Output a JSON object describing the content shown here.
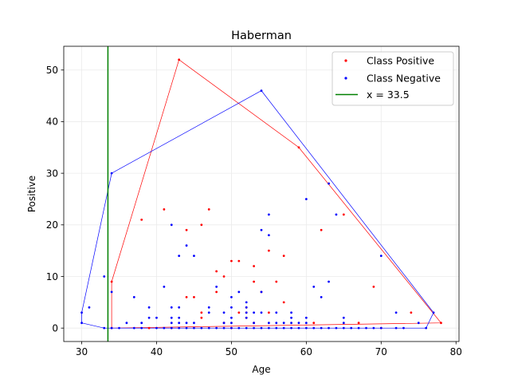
{
  "chart_data": {
    "type": "scatter",
    "title": "Haberman",
    "xlabel": "Age",
    "ylabel": "Positive",
    "xlim": [
      27.6,
      80.4
    ],
    "ylim": [
      -2.6,
      54.6
    ],
    "xticks": [
      30,
      40,
      50,
      60,
      70,
      80
    ],
    "yticks": [
      0,
      10,
      20,
      30,
      40,
      50
    ],
    "grid": true,
    "legend_position": "top-right",
    "vline": {
      "x": 33.5,
      "label": "x = 33.5",
      "color": "#008000"
    },
    "series": [
      {
        "name": "Class Positive",
        "color": "#ff0000",
        "points": [
          [
            34,
            9
          ],
          [
            34,
            0
          ],
          [
            38,
            21
          ],
          [
            39,
            0
          ],
          [
            41,
            23
          ],
          [
            42,
            0
          ],
          [
            43,
            52
          ],
          [
            44,
            6
          ],
          [
            44,
            19
          ],
          [
            45,
            6
          ],
          [
            46,
            20
          ],
          [
            46,
            3
          ],
          [
            46,
            2
          ],
          [
            47,
            23
          ],
          [
            48,
            11
          ],
          [
            48,
            7
          ],
          [
            49,
            10
          ],
          [
            49,
            1
          ],
          [
            50,
            13
          ],
          [
            50,
            0
          ],
          [
            51,
            13
          ],
          [
            51,
            3
          ],
          [
            52,
            3
          ],
          [
            52,
            2
          ],
          [
            52,
            4
          ],
          [
            53,
            12
          ],
          [
            53,
            9
          ],
          [
            53,
            1
          ],
          [
            54,
            7
          ],
          [
            55,
            15
          ],
          [
            55,
            3
          ],
          [
            56,
            9
          ],
          [
            57,
            14
          ],
          [
            57,
            5
          ],
          [
            59,
            35
          ],
          [
            61,
            1
          ],
          [
            62,
            19
          ],
          [
            63,
            28
          ],
          [
            65,
            22
          ],
          [
            67,
            1
          ],
          [
            69,
            8
          ],
          [
            70,
            0
          ],
          [
            74,
            3
          ],
          [
            78,
            1
          ]
        ],
        "hull": [
          [
            34,
            0
          ],
          [
            34,
            9
          ],
          [
            43,
            52
          ],
          [
            59,
            35
          ],
          [
            78,
            1
          ],
          [
            34,
            0
          ]
        ]
      },
      {
        "name": "Class Negative",
        "color": "#0000ff",
        "points": [
          [
            30,
            1
          ],
          [
            30,
            3
          ],
          [
            31,
            4
          ],
          [
            33,
            10
          ],
          [
            33,
            0
          ],
          [
            34,
            30
          ],
          [
            34,
            7
          ],
          [
            34,
            0
          ],
          [
            35,
            0
          ],
          [
            36,
            1
          ],
          [
            37,
            6
          ],
          [
            37,
            0
          ],
          [
            38,
            1
          ],
          [
            38,
            0
          ],
          [
            39,
            2
          ],
          [
            39,
            4
          ],
          [
            40,
            2
          ],
          [
            40,
            0
          ],
          [
            41,
            0
          ],
          [
            41,
            8
          ],
          [
            42,
            20
          ],
          [
            42,
            4
          ],
          [
            42,
            2
          ],
          [
            42,
            1
          ],
          [
            42,
            0
          ],
          [
            43,
            14
          ],
          [
            43,
            4
          ],
          [
            43,
            2
          ],
          [
            43,
            1
          ],
          [
            43,
            0
          ],
          [
            44,
            16
          ],
          [
            44,
            1
          ],
          [
            44,
            0
          ],
          [
            45,
            14
          ],
          [
            45,
            1
          ],
          [
            45,
            0
          ],
          [
            46,
            0
          ],
          [
            47,
            4
          ],
          [
            47,
            3
          ],
          [
            47,
            0
          ],
          [
            48,
            8
          ],
          [
            48,
            0
          ],
          [
            49,
            3
          ],
          [
            49,
            1
          ],
          [
            49,
            0
          ],
          [
            50,
            6
          ],
          [
            50,
            4
          ],
          [
            50,
            2
          ],
          [
            50,
            1
          ],
          [
            50,
            0
          ],
          [
            51,
            7
          ],
          [
            51,
            0
          ],
          [
            52,
            5
          ],
          [
            52,
            4
          ],
          [
            52,
            3
          ],
          [
            52,
            2
          ],
          [
            52,
            0
          ],
          [
            53,
            3
          ],
          [
            53,
            1
          ],
          [
            53,
            0
          ],
          [
            54,
            46
          ],
          [
            54,
            19
          ],
          [
            54,
            7
          ],
          [
            54,
            3
          ],
          [
            54,
            0
          ],
          [
            55,
            22
          ],
          [
            55,
            18
          ],
          [
            55,
            1
          ],
          [
            55,
            0
          ],
          [
            56,
            3
          ],
          [
            56,
            1
          ],
          [
            56,
            0
          ],
          [
            57,
            1
          ],
          [
            57,
            0
          ],
          [
            58,
            3
          ],
          [
            58,
            2
          ],
          [
            58,
            1
          ],
          [
            58,
            0
          ],
          [
            59,
            1
          ],
          [
            59,
            0
          ],
          [
            60,
            25
          ],
          [
            60,
            2
          ],
          [
            60,
            1
          ],
          [
            60,
            0
          ],
          [
            61,
            8
          ],
          [
            61,
            0
          ],
          [
            62,
            6
          ],
          [
            62,
            0
          ],
          [
            63,
            9
          ],
          [
            63,
            28
          ],
          [
            63,
            0
          ],
          [
            64,
            22
          ],
          [
            64,
            0
          ],
          [
            65,
            2
          ],
          [
            65,
            1
          ],
          [
            65,
            0
          ],
          [
            66,
            0
          ],
          [
            67,
            0
          ],
          [
            68,
            0
          ],
          [
            69,
            0
          ],
          [
            70,
            14
          ],
          [
            70,
            0
          ],
          [
            72,
            3
          ],
          [
            72,
            0
          ],
          [
            73,
            0
          ],
          [
            75,
            1
          ],
          [
            76,
            0
          ],
          [
            77,
            3
          ]
        ],
        "hull": [
          [
            30,
            1
          ],
          [
            30,
            3
          ],
          [
            34,
            30
          ],
          [
            54,
            46
          ],
          [
            77,
            3
          ],
          [
            76,
            0
          ],
          [
            33,
            0
          ],
          [
            30,
            1
          ]
        ]
      }
    ]
  }
}
